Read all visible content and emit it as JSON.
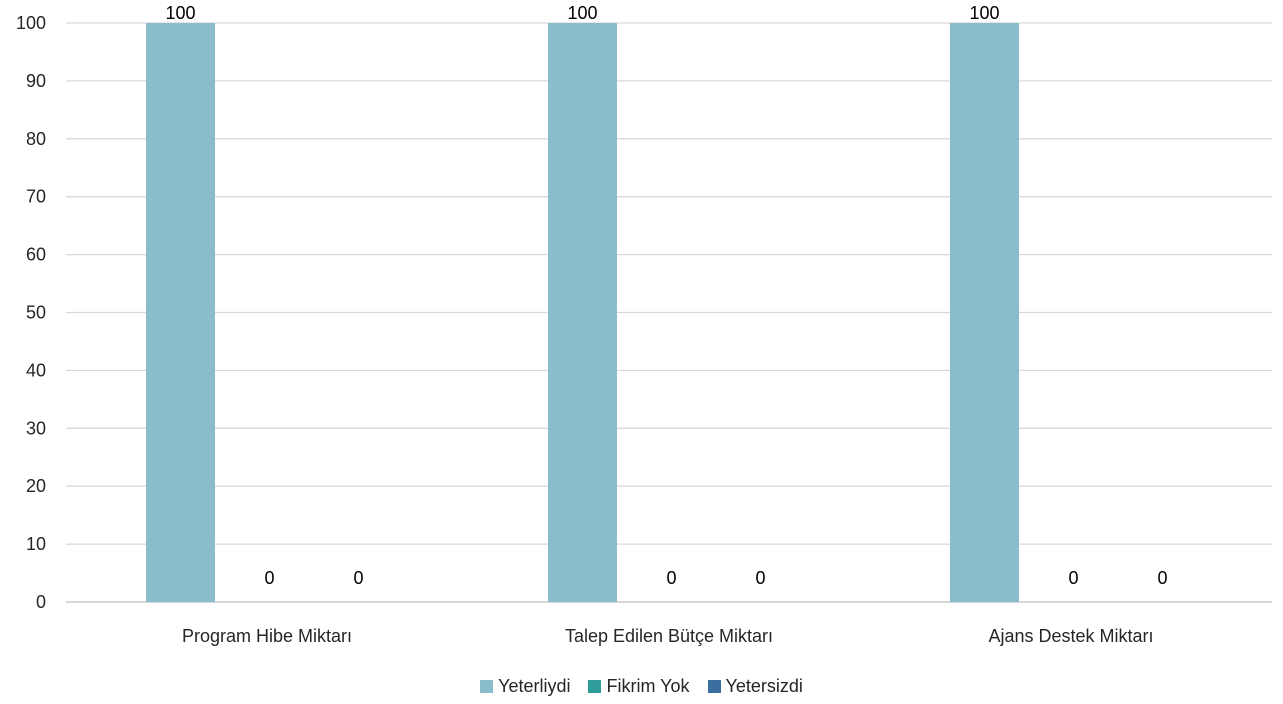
{
  "chart_data": {
    "type": "bar",
    "categories": [
      "Program Hibe Miktarı",
      "Talep Edilen Bütçe Miktarı",
      "Ajans Destek Miktarı"
    ],
    "series": [
      {
        "name": "Yeterliydi",
        "values": [
          100,
          100,
          100
        ],
        "color": "#8bbccc"
      },
      {
        "name": "Fikrim Yok",
        "values": [
          0,
          0,
          0
        ],
        "color": "#2e9c98"
      },
      {
        "name": "Yetersizdi",
        "values": [
          0,
          0,
          0
        ],
        "color": "#3a6f9f"
      }
    ],
    "ylim": [
      0,
      100
    ],
    "yticks": [
      0,
      10,
      20,
      30,
      40,
      50,
      60,
      70,
      80,
      90,
      100
    ],
    "grid": true,
    "legend_position": "bottom",
    "data_labels": true
  }
}
